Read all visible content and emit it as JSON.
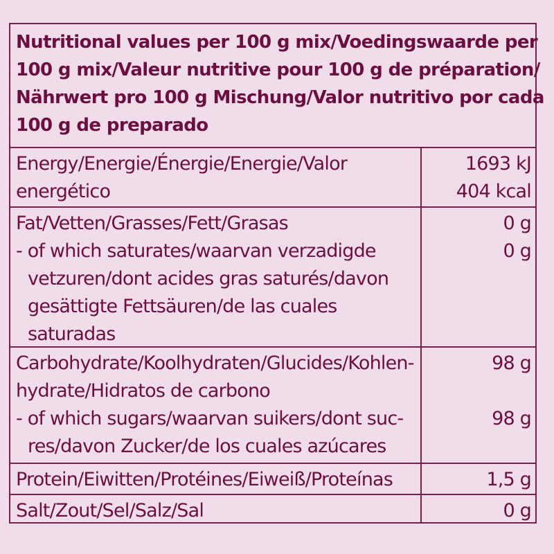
{
  "header": {
    "lines": [
      "Nutritional values per 100 g mix/Voedingswaarde per",
      "100 g mix/Valeur nutritive pour 100 g de préparation/",
      "Nährwert pro 100 g Mischung/Valor nutritivo por cada",
      "100 g de preparado"
    ]
  },
  "rows": [
    {
      "label": [
        "Energy/Energie/Énergie/Energie/Valor",
        "energético"
      ],
      "value": [
        "1693 kJ",
        "404 kcal"
      ]
    },
    {
      "label": [
        "Fat/Vetten/Grasses/Fett/Grasas",
        "- of which saturates/waarvan verzadigde",
        "  vetzuren/dont acides gras saturés/davon",
        "  gesättigte Fettsäuren/de las cuales",
        "  saturadas"
      ],
      "value": [
        "0 g",
        "0 g"
      ]
    },
    {
      "label": [
        "Carbohydrate/Koolhydraten/Glucides/Kohlen-",
        "hydrate/Hidratos de carbono",
        "- of which sugars/waarvan suikers/dont suc-",
        "  res/davon Zucker/de los cuales azúcares"
      ],
      "value": [
        "98 g",
        "",
        "98 g"
      ]
    },
    {
      "label": [
        "Protein/Eiwitten/Protéines/Eiweiß/Proteínas"
      ],
      "value": [
        "1,5 g"
      ]
    },
    {
      "label": [
        "Salt/Zout/Sel/Salz/Sal"
      ],
      "value": [
        "0 g"
      ]
    }
  ]
}
